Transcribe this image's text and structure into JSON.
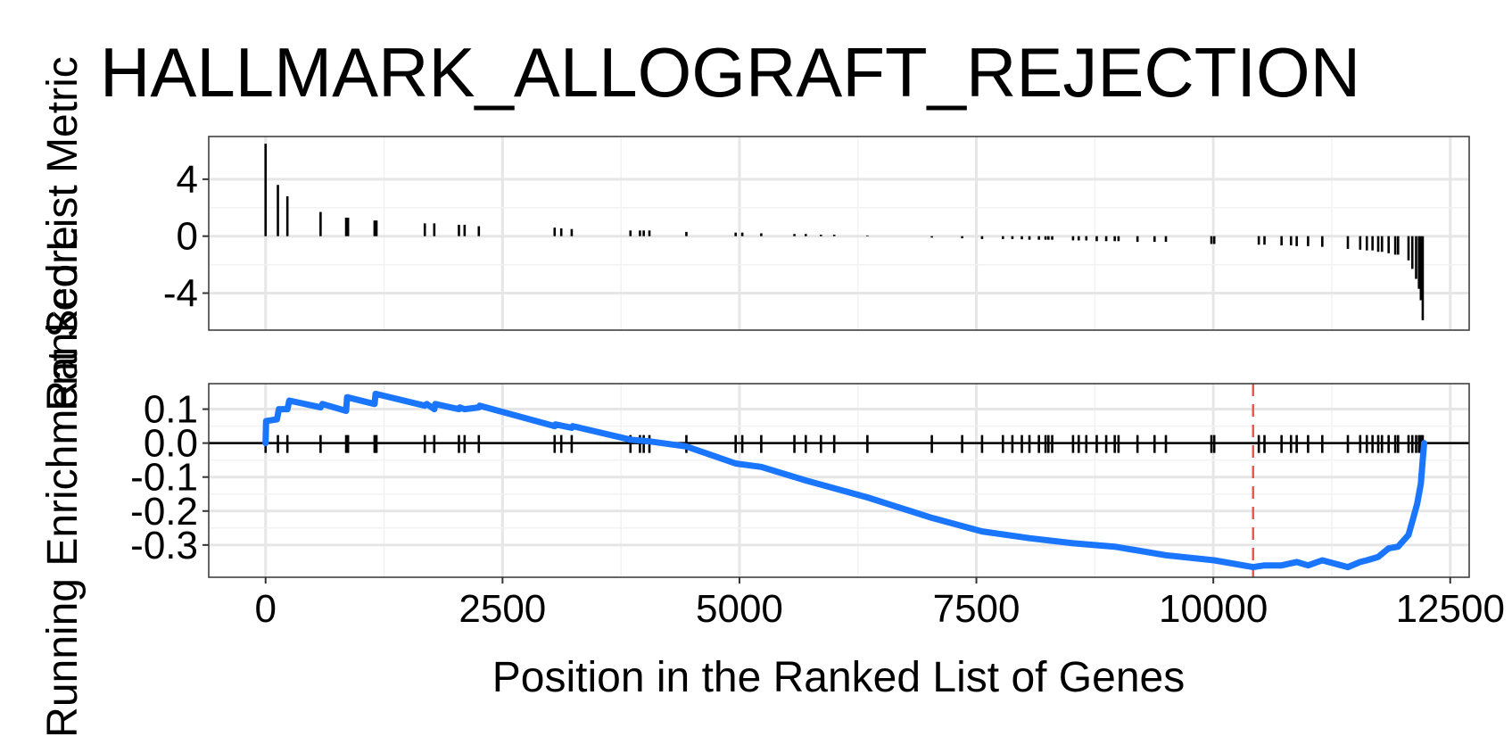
{
  "chart_data": [
    {
      "type": "bar",
      "panel": "ranked-list-metric",
      "title": "HALLMARK_ALLOGRAFT_REJECTION",
      "ylabel": "Ranked List Metric",
      "xlim": [
        -600,
        12700
      ],
      "ylim": [
        -6.6,
        7.0
      ],
      "x_ticks": [
        0,
        2500,
        5000,
        7500,
        10000,
        12500
      ],
      "y_ticks": [
        4,
        0,
        -4
      ],
      "y_tick_labels": [
        "4",
        "0",
        "-4"
      ],
      "grid": true,
      "bar_color": "#000000",
      "x": [
        0,
        130,
        230,
        580,
        850,
        870,
        1150,
        1170,
        1680,
        1780,
        2040,
        2100,
        2250,
        3050,
        3120,
        3230,
        3850,
        3950,
        3990,
        4050,
        4440,
        4960,
        5030,
        5230,
        5580,
        5700,
        5860,
        6000,
        6350,
        7030,
        7350,
        7560,
        7780,
        7880,
        7980,
        8060,
        8160,
        8230,
        8260,
        8300,
        8520,
        8580,
        8660,
        8770,
        8870,
        8960,
        9000,
        9200,
        9380,
        9500,
        9980,
        10010,
        10480,
        10540,
        10720,
        10820,
        10880,
        11000,
        11150,
        11420,
        11550,
        11620,
        11680,
        11740,
        11780,
        11850,
        11920,
        11950,
        12060,
        12100,
        12140,
        12170,
        12190,
        12210
      ],
      "values": [
        6.5,
        3.6,
        2.8,
        1.7,
        1.3,
        1.3,
        1.1,
        1.1,
        0.9,
        0.9,
        0.8,
        0.8,
        0.7,
        0.6,
        0.55,
        0.5,
        0.4,
        0.4,
        0.4,
        0.4,
        0.3,
        0.25,
        0.25,
        0.2,
        0.15,
        0.15,
        0.1,
        0.1,
        0.05,
        -0.1,
        -0.15,
        -0.2,
        -0.2,
        -0.2,
        -0.22,
        -0.25,
        -0.25,
        -0.25,
        -0.25,
        -0.25,
        -0.3,
        -0.3,
        -0.3,
        -0.35,
        -0.35,
        -0.35,
        -0.35,
        -0.4,
        -0.4,
        -0.4,
        -0.55,
        -0.55,
        -0.6,
        -0.6,
        -0.65,
        -0.65,
        -0.7,
        -0.7,
        -0.75,
        -0.9,
        -0.95,
        -1.0,
        -1.0,
        -1.1,
        -1.1,
        -1.2,
        -1.3,
        -1.3,
        -1.7,
        -2.3,
        -3.0,
        -3.7,
        -4.5,
        -5.9
      ]
    },
    {
      "type": "line",
      "panel": "running-enrichment-score",
      "ylabel": "Running Enrichment Score",
      "xlabel": "Position in the Ranked List of Genes",
      "xlim": [
        -600,
        12700
      ],
      "ylim": [
        -0.395,
        0.175
      ],
      "x_ticks": [
        0,
        2500,
        5000,
        7500,
        10000,
        12500
      ],
      "y_ticks": [
        0.1,
        0.0,
        -0.1,
        -0.2,
        -0.3
      ],
      "y_tick_labels": [
        "0.1",
        "0.0",
        "-0.1",
        "-0.2",
        "-0.3"
      ],
      "grid": true,
      "line_color": "#1a75ff",
      "zero_line": true,
      "peak_position": 10420,
      "peak_line_color": "#ee5555",
      "x": [
        0,
        5,
        120,
        140,
        230,
        250,
        580,
        600,
        850,
        860,
        1150,
        1160,
        1680,
        1700,
        1780,
        1790,
        2040,
        2050,
        2100,
        2250,
        2260,
        3050,
        3060,
        3230,
        3240,
        3850,
        4050,
        4440,
        4960,
        5230,
        5700,
        6350,
        7030,
        7560,
        8060,
        8520,
        8960,
        9500,
        10010,
        10420,
        10540,
        10720,
        10880,
        11000,
        11150,
        11420,
        11550,
        11620,
        11680,
        11740,
        11850,
        11950,
        12060,
        12100,
        12150,
        12190,
        12210,
        12225
      ],
      "values": [
        0.0,
        0.065,
        0.07,
        0.1,
        0.1,
        0.125,
        0.105,
        0.115,
        0.095,
        0.135,
        0.115,
        0.145,
        0.11,
        0.115,
        0.1,
        0.115,
        0.1,
        0.105,
        0.1,
        0.105,
        0.11,
        0.05,
        0.055,
        0.045,
        0.05,
        0.01,
        0.005,
        -0.01,
        -0.06,
        -0.07,
        -0.11,
        -0.16,
        -0.22,
        -0.26,
        -0.28,
        -0.295,
        -0.305,
        -0.33,
        -0.345,
        -0.365,
        -0.36,
        -0.36,
        -0.35,
        -0.36,
        -0.345,
        -0.365,
        -0.35,
        -0.345,
        -0.34,
        -0.335,
        -0.31,
        -0.305,
        -0.27,
        -0.23,
        -0.18,
        -0.12,
        -0.05,
        0.0
      ]
    }
  ]
}
